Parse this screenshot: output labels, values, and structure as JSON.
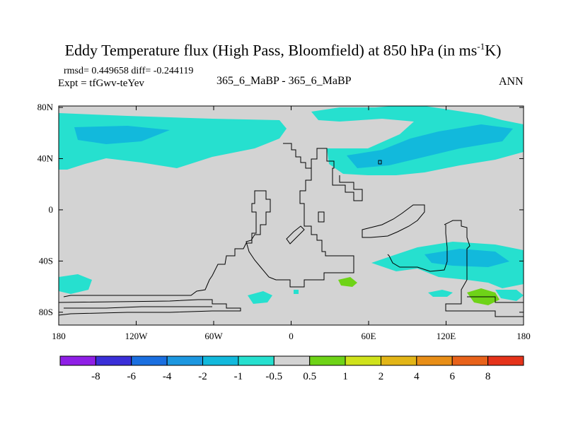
{
  "header": {
    "title": "Eddy Temperature flux (High Pass, Bloomfield) at 850 hPa (in ms",
    "title_sup": "-1",
    "title_end": "K)",
    "stats": "rmsd= 0.449658 diff= -0.244119",
    "expt": "Expt = tfGwv-teYev",
    "case": "365_6_MaBP - 365_6_MaBP",
    "season": "ANN"
  },
  "map": {
    "x_ticks": [
      "180",
      "120W",
      "60W",
      "0",
      "60E",
      "120E",
      "180"
    ],
    "y_ticks": [
      "80N",
      "40N",
      "0",
      "40S",
      "80S"
    ]
  },
  "colorbar": {
    "labels": [
      "-8",
      "-6",
      "-4",
      "-2",
      "-1",
      "-0.5",
      "0.5",
      "1",
      "2",
      "4",
      "6",
      "8"
    ],
    "colors": [
      "#8f1fe6",
      "#3a2fd8",
      "#1a6fe0",
      "#1c97e0",
      "#12b9dc",
      "#26e0cf",
      "#d3d3d3",
      "#6ed317",
      "#cfe21b",
      "#e2b517",
      "#e88e17",
      "#e8621a",
      "#e5331a"
    ]
  },
  "colors": {
    "background": "#d3d3d3",
    "light_neg": "#26e0cf",
    "mid_neg": "#12b9dc",
    "positive": "#6ed317"
  }
}
